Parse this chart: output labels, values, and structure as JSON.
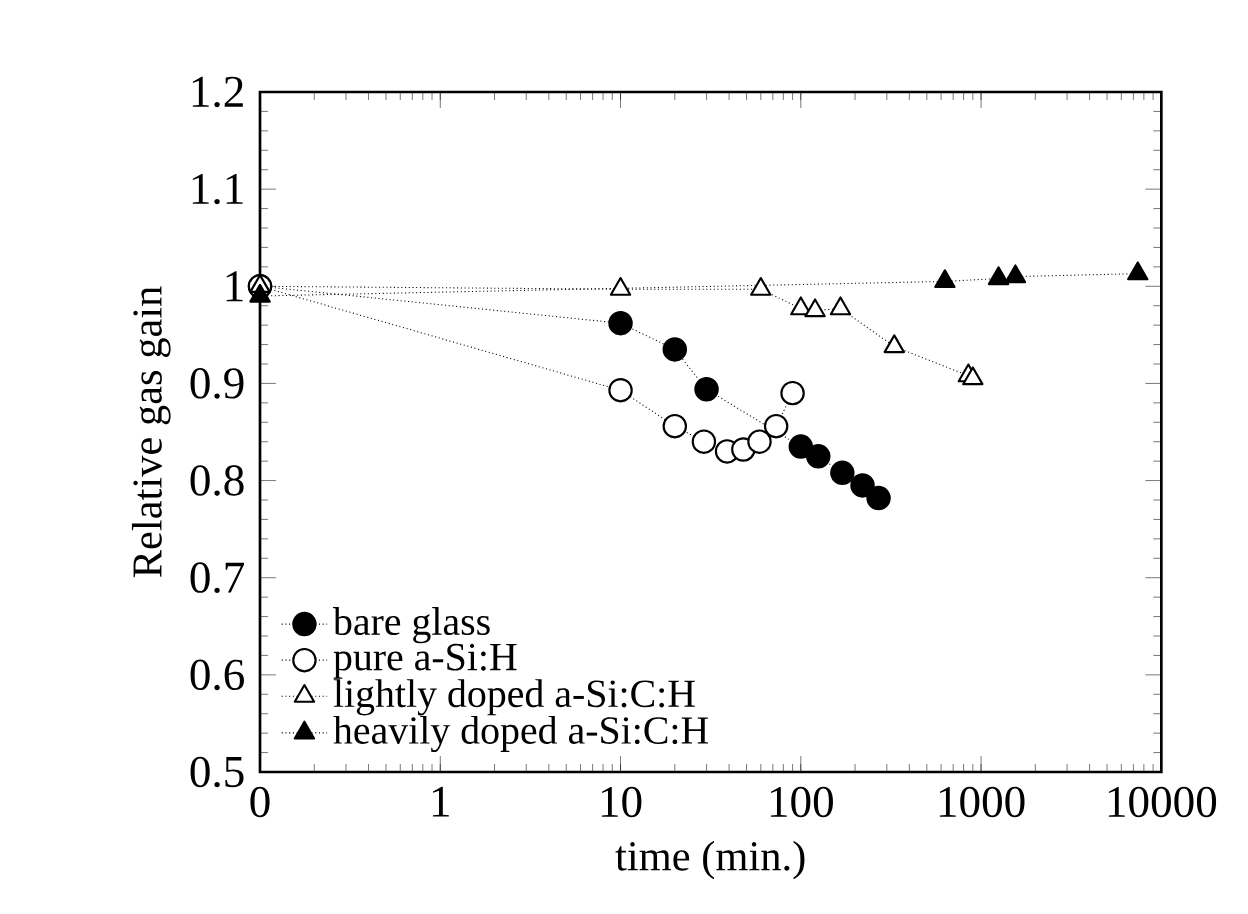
{
  "chart_data": {
    "type": "line",
    "xlabel": "time (min.)",
    "ylabel": "Relative gas gain",
    "log": "x",
    "xlim": [
      0.1,
      10000
    ],
    "ylim": [
      0.5,
      1.2
    ],
    "xticks": [
      {
        "value": 0.1,
        "label": "0"
      },
      1,
      10,
      100,
      1000,
      10000
    ],
    "yticks": [
      0.5,
      0.6,
      0.7,
      0.8,
      0.9,
      1,
      1.1,
      1.2
    ],
    "legend": "bottom left",
    "line_style": "dotted",
    "grid": false,
    "series": [
      {
        "name": "bare glass",
        "color": "#000000",
        "marker": "circle",
        "x": [
          0.1,
          10,
          20,
          30,
          100,
          125,
          170,
          220,
          270
        ],
        "values": [
          1.0,
          0.962,
          0.935,
          0.894,
          0.835,
          0.825,
          0.808,
          0.795,
          0.782
        ]
      },
      {
        "name": "pure a-Si:H",
        "color": "#ffffff",
        "marker": "circle",
        "x": [
          0.1,
          10,
          20,
          29,
          39,
          48,
          59,
          73,
          90
        ],
        "values": [
          1.0,
          0.893,
          0.856,
          0.84,
          0.83,
          0.832,
          0.84,
          0.856,
          0.89
        ]
      },
      {
        "name": "lightly doped a-Si:C:H",
        "color": "#ffffff",
        "marker": "triangle",
        "x": [
          0.1,
          10,
          60,
          100,
          120,
          166,
          330,
          850,
          900
        ],
        "values": [
          1.0,
          0.997,
          0.997,
          0.977,
          0.975,
          0.977,
          0.938,
          0.908,
          0.905
        ]
      },
      {
        "name": "heavily doped a-Si:C:H",
        "color": "#000000",
        "marker": "triangle",
        "x": [
          0.1,
          630,
          1250,
          1550,
          7400
        ],
        "values": [
          0.99,
          1.005,
          1.008,
          1.01,
          1.013
        ]
      }
    ]
  }
}
